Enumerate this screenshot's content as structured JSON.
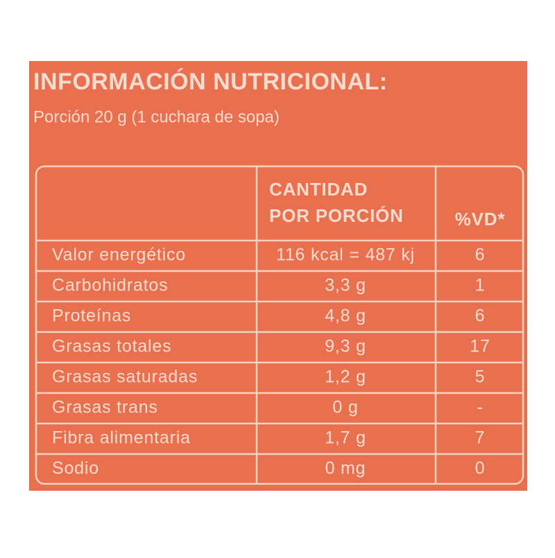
{
  "header": {
    "title": "INFORMACIÓN NUTRICIONAL:",
    "portion": "Porción 20 g (1 cuchara de sopa)"
  },
  "table": {
    "heading": {
      "quantity": [
        "CANTIDAD",
        "POR PORCIÓN"
      ],
      "vd": "%VD*"
    },
    "rows": [
      [
        "Valor energético",
        "116 kcal = 487 kj",
        "6"
      ],
      [
        "Carbohidratos",
        "3,3 g",
        "1"
      ],
      [
        "Proteínas",
        "4,8 g",
        "6"
      ],
      [
        "Grasas totales",
        "9,3 g",
        "17"
      ],
      [
        "Grasas saturadas",
        "1,2 g",
        "5"
      ],
      [
        "Grasas trans",
        "0 g",
        "-"
      ],
      [
        "Fibra alimentaria",
        "1,7 g",
        "7"
      ],
      [
        "Sodio",
        "0 mg",
        "0"
      ]
    ]
  }
}
